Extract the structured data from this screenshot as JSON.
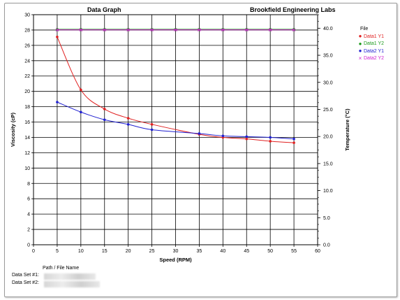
{
  "chart_data": {
    "type": "line",
    "title": "Data Graph",
    "subtitle": "Brookfield Engineering Labs",
    "xlabel": "Speed (RPM)",
    "ylabel": "Viscosity (cP)",
    "y2label": "Temperature (°C)",
    "xlim": [
      0,
      60
    ],
    "ylim": [
      0,
      30
    ],
    "y2lim": [
      0,
      42.5
    ],
    "x_ticks": [
      "0",
      "5",
      "10",
      "15",
      "20",
      "25",
      "30",
      "35",
      "40",
      "45",
      "50",
      "55",
      "60"
    ],
    "y_ticks": [
      "0",
      "2",
      "4",
      "6",
      "8",
      "10",
      "12",
      "14",
      "16",
      "18",
      "20",
      "22",
      "24",
      "26",
      "28",
      "30"
    ],
    "y2_ticks": [
      "0.0",
      "5.0",
      "10.0",
      "15.0",
      "20.0",
      "25.0",
      "30.0",
      "35.0",
      "40.0"
    ],
    "grid": true,
    "legend_position": "top-right",
    "legend_title": "File",
    "series": [
      {
        "name": "Data1 Y1",
        "axis": "left",
        "color": "#e02020",
        "marker": "●",
        "x": [
          5,
          10,
          15,
          20,
          25,
          35,
          40,
          45,
          50,
          55
        ],
        "y": [
          27.1,
          20.2,
          17.7,
          16.5,
          15.7,
          14.4,
          14.0,
          13.8,
          13.5,
          13.3
        ]
      },
      {
        "name": "Data1 Y2",
        "axis": "right",
        "color": "#1a9a1a",
        "marker": "●",
        "x": [
          5,
          10,
          15,
          20,
          25,
          30,
          35,
          40,
          45,
          50,
          55
        ],
        "y": [
          39.8,
          39.8,
          39.8,
          39.8,
          39.8,
          39.8,
          39.8,
          39.8,
          39.8,
          39.8,
          39.8
        ]
      },
      {
        "name": "Data2 Y1",
        "axis": "left",
        "color": "#2020d0",
        "marker": "●",
        "x": [
          5,
          10,
          15,
          20,
          25,
          35,
          40,
          45,
          50,
          55
        ],
        "y": [
          18.6,
          17.3,
          16.3,
          15.7,
          15.0,
          14.5,
          14.2,
          14.1,
          14.0,
          13.8
        ]
      },
      {
        "name": "Data2 Y2",
        "axis": "right",
        "color": "#d020d0",
        "marker": "×",
        "x": [
          5,
          10,
          15,
          20,
          25,
          30,
          35,
          40,
          45,
          50,
          55
        ],
        "y": [
          39.7,
          39.7,
          39.7,
          39.7,
          39.7,
          39.7,
          39.7,
          39.7,
          39.7,
          39.7,
          39.7
        ]
      }
    ]
  },
  "footer": {
    "header": "Path / File Name",
    "row1_label": "Data Set #1:",
    "row2_label": "Data Set #2:"
  }
}
